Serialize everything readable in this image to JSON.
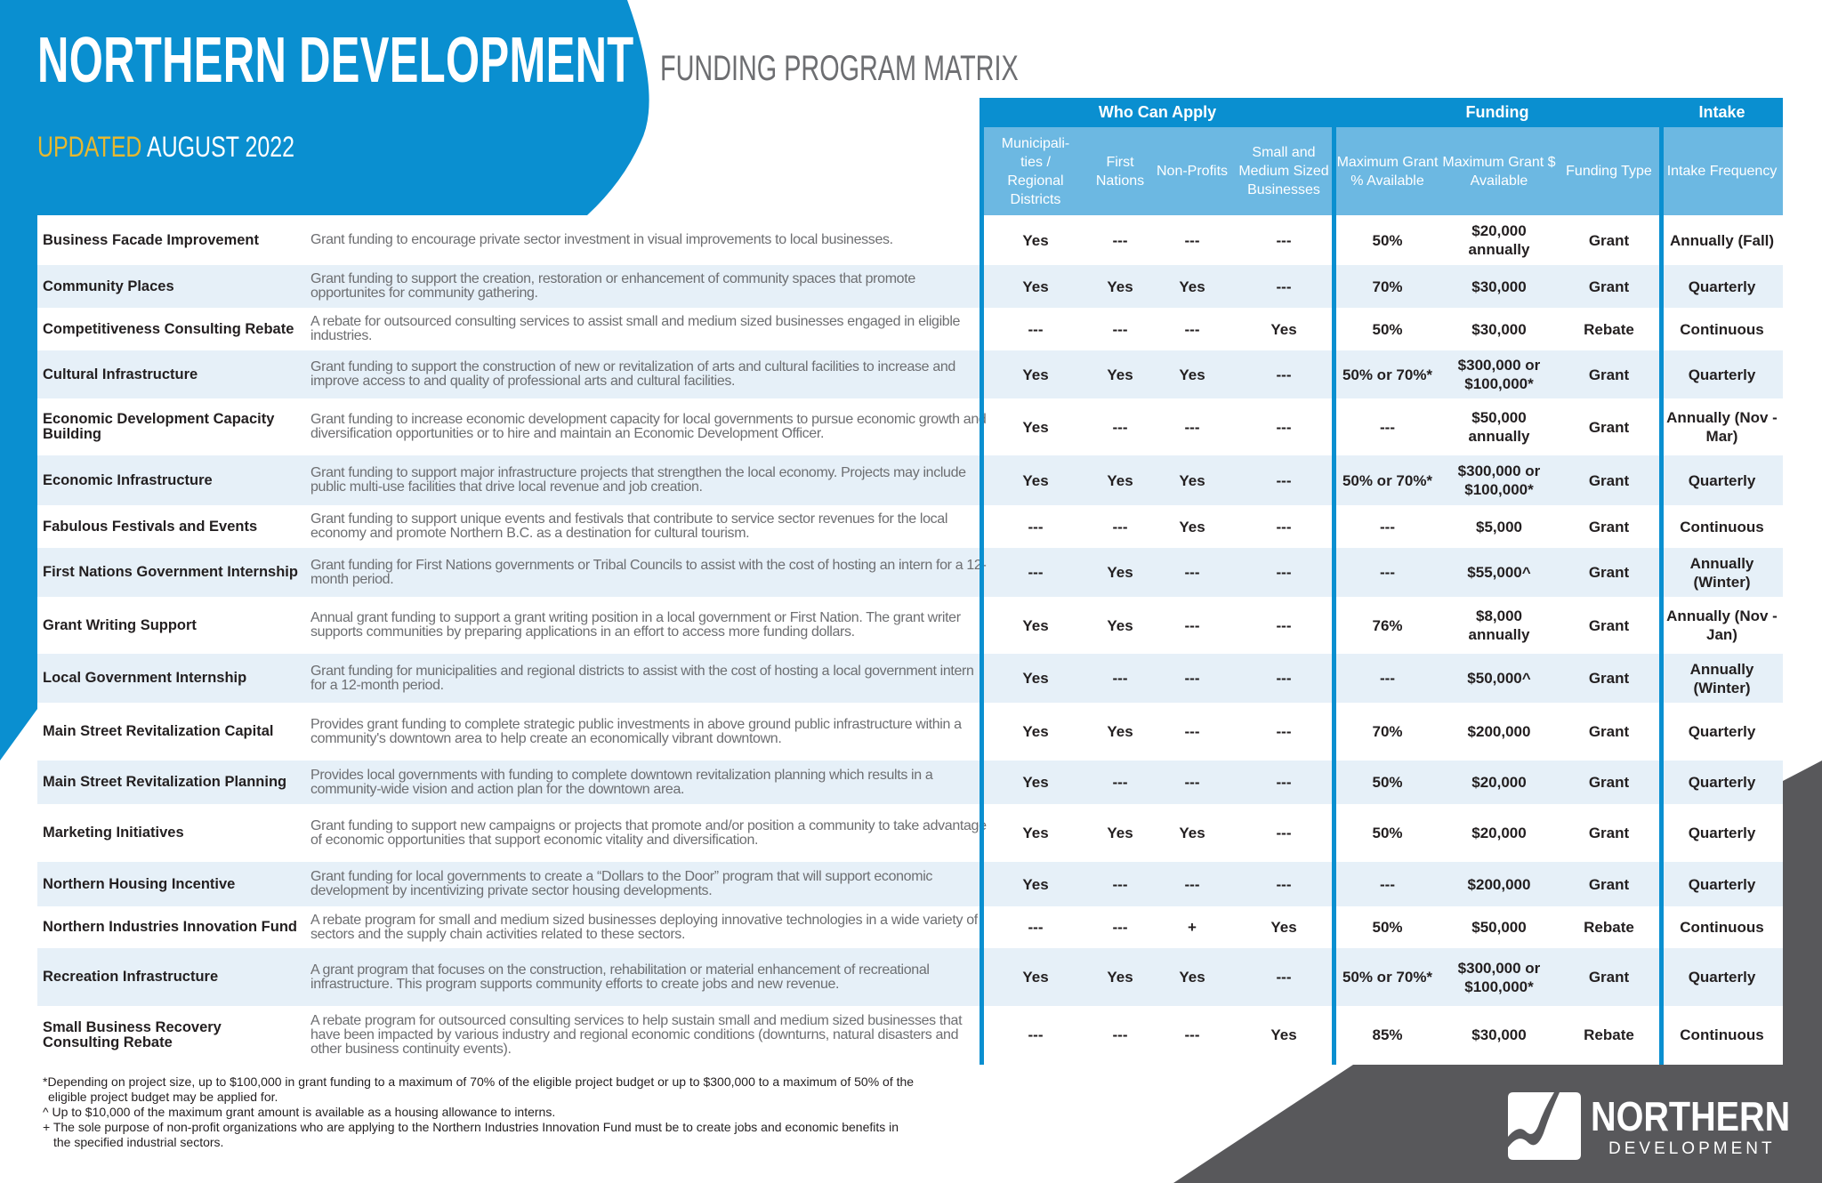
{
  "header": {
    "title": "NORTHERN DEVELOPMENT",
    "subtitle": "FUNDING PROGRAM MATRIX",
    "updated_label": "UPDATED",
    "updated_date": "AUGUST 2022"
  },
  "colors": {
    "brand_blue": "#0a8fd0",
    "light_blue": "#6cb8e2",
    "row_alt": "#e6f0f8",
    "gray": "#58585b",
    "accent_gold": "#e6b830"
  },
  "groups": [
    "Who Can Apply",
    "Funding",
    "Intake"
  ],
  "columns": [
    "Municipali-ties / Regional Districts",
    "First Nations",
    "Non-Profits",
    "Small and Medium Sized Businesses",
    "Maximum Grant % Available",
    "Maximum Grant $ Available",
    "Funding Type",
    "Intake Frequency"
  ],
  "programs": [
    {
      "name": "Business Facade Improvement",
      "description": "Grant funding to encourage private sector investment in visual improvements to local businesses.",
      "values": [
        "Yes",
        "---",
        "---",
        "---",
        "50%",
        "$20,000 annually",
        "Grant",
        "Annually (Fall)"
      ]
    },
    {
      "name": "Community Places",
      "description": "Grant funding to support the creation, restoration or enhancement of community spaces that promote opportunites for community gathering.",
      "values": [
        "Yes",
        "Yes",
        "Yes",
        "---",
        "70%",
        "$30,000",
        "Grant",
        "Quarterly"
      ]
    },
    {
      "name": "Competitiveness Consulting Rebate",
      "description": "A rebate for outsourced consulting services to assist small and medium sized businesses engaged in eligible industries.",
      "values": [
        "---",
        "---",
        "---",
        "Yes",
        "50%",
        "$30,000",
        "Rebate",
        "Continuous"
      ]
    },
    {
      "name": "Cultural Infrastructure",
      "description": "Grant funding to support the construction of new or revitalization of arts and cultural facilities to increase and improve access to and quality of professional arts and cultural facilities.",
      "values": [
        "Yes",
        "Yes",
        "Yes",
        "---",
        "50% or 70%*",
        "$300,000 or $100,000*",
        "Grant",
        "Quarterly"
      ]
    },
    {
      "name": "Economic Development Capacity Building",
      "description": "Grant funding to increase economic development capacity for local governments to pursue economic growth and diversification opportunities or to hire and maintain an Economic Development Officer.",
      "values": [
        "Yes",
        "---",
        "---",
        "---",
        "---",
        "$50,000 annually",
        "Grant",
        "Annually (Nov - Mar)"
      ]
    },
    {
      "name": "Economic Infrastructure",
      "description": "Grant funding to support major infrastructure projects that strengthen the local economy. Projects may include public multi-use facilities that drive local revenue and job creation.",
      "values": [
        "Yes",
        "Yes",
        "Yes",
        "---",
        "50% or 70%*",
        "$300,000 or $100,000*",
        "Grant",
        "Quarterly"
      ]
    },
    {
      "name": "Fabulous Festivals and Events",
      "description": "Grant funding to support unique events and festivals that contribute to service sector revenues for the local economy and promote Northern B.C. as a destination for cultural tourism.",
      "values": [
        "---",
        "---",
        "Yes",
        "---",
        "---",
        "$5,000",
        "Grant",
        "Continuous"
      ]
    },
    {
      "name": "First Nations Government Internship",
      "description": "Grant funding for First Nations governments or Tribal Councils to assist with the cost of hosting an intern for a 12-month period.",
      "values": [
        "---",
        "Yes",
        "---",
        "---",
        "---",
        "$55,000^",
        "Grant",
        "Annually (Winter)"
      ]
    },
    {
      "name": "Grant Writing Support",
      "description": "Annual grant funding to support a grant writing position in a local government or First Nation. The grant writer supports communities by preparing applications in an effort to access more funding dollars.",
      "values": [
        "Yes",
        "Yes",
        "---",
        "---",
        "76%",
        "$8,000 annually",
        "Grant",
        "Annually (Nov - Jan)"
      ]
    },
    {
      "name": "Local Government Internship",
      "description": "Grant funding for municipalities and regional districts to assist with the cost of hosting a local government intern for a 12-month period.",
      "values": [
        "Yes",
        "---",
        "---",
        "---",
        "---",
        "$50,000^",
        "Grant",
        "Annually (Winter)"
      ]
    },
    {
      "name": "Main Street Revitalization Capital",
      "description": "Provides grant funding to complete strategic public investments in above ground public infrastructure within a community's downtown area to help create an economically vibrant downtown.",
      "values": [
        "Yes",
        "Yes",
        "---",
        "---",
        "70%",
        "$200,000",
        "Grant",
        "Quarterly"
      ]
    },
    {
      "name": "Main Street Revitalization Planning",
      "description": "Provides local governments with funding to complete downtown revitalization planning which results in a community-wide vision and action plan for the downtown area.",
      "values": [
        "Yes",
        "---",
        "---",
        "---",
        "50%",
        "$20,000",
        "Grant",
        "Quarterly"
      ]
    },
    {
      "name": "Marketing Initiatives",
      "description": "Grant funding to support new campaigns or projects that promote and/or position a community to take advantage of economic opportunities that support economic vitality and diversification.",
      "values": [
        "Yes",
        "Yes",
        "Yes",
        "---",
        "50%",
        "$20,000",
        "Grant",
        "Quarterly"
      ]
    },
    {
      "name": "Northern Housing Incentive",
      "description": "Grant funding for local governments to create a “Dollars to the Door” program that will support economic development by incentivizing private sector housing developments.",
      "values": [
        "Yes",
        "---",
        "---",
        "---",
        "---",
        "$200,000",
        "Grant",
        "Quarterly"
      ]
    },
    {
      "name": "Northern Industries Innovation Fund",
      "description": "A rebate program for small and medium sized businesses deploying innovative technologies in a wide variety of sectors and the supply chain activities related to these sectors.",
      "values": [
        "---",
        "---",
        "+",
        "Yes",
        "50%",
        "$50,000",
        "Rebate",
        "Continuous"
      ]
    },
    {
      "name": "Recreation Infrastructure",
      "description": "A grant program that focuses on the construction, rehabilitation or material enhancement of recreational infrastructure. This program supports community efforts to create jobs and new revenue.",
      "values": [
        "Yes",
        "Yes",
        "Yes",
        "---",
        "50% or 70%*",
        "$300,000 or $100,000*",
        "Grant",
        "Quarterly"
      ]
    },
    {
      "name": "Small Business Recovery Consulting Rebate",
      "description": "A rebate program for outsourced consulting services to help sustain small and medium sized businesses that have been impacted by various industry and regional economic conditions (downturns, natural disasters and other business continuity events).",
      "values": [
        "---",
        "---",
        "---",
        "Yes",
        "85%",
        "$30,000",
        "Rebate",
        "Continuous"
      ]
    }
  ],
  "footnotes": [
    "*Depending on project size, up to $100,000 in grant funding to a maximum of 70% of the eligible project budget or up to $300,000 to a maximum of 50% of the",
    "  eligible project budget may be applied for.",
    "^ Up to $10,000 of the maximum grant amount is available as a housing allowance to interns.",
    "+ The sole purpose of non-profit organizations who are applying to the Northern Industries Innovation Fund must be to create jobs and economic benefits in",
    "   the specified industrial sectors."
  ],
  "logo": {
    "line1": "NORTHERN",
    "line2": "DEVELOPMENT",
    "icon": "wave-logo-icon"
  }
}
